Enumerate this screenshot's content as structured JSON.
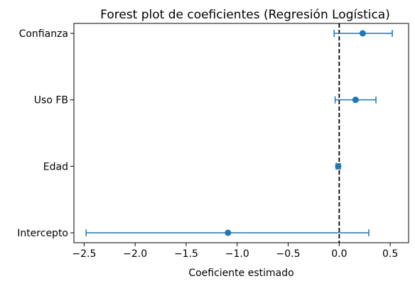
{
  "chart_data": {
    "type": "scatter",
    "title": "Forest plot de coeficientes (Regresión Logística)",
    "xlabel": "Coeficiente estimado",
    "ylabel": "",
    "xlim": [
      -2.6,
      0.68
    ],
    "xticks": [
      -2.5,
      -2.0,
      -1.5,
      -1.0,
      -0.5,
      0.0,
      0.5
    ],
    "xtick_labels": [
      "−2.5",
      "−2.0",
      "−1.5",
      "−1.0",
      "−0.5",
      "0.0",
      "0.5"
    ],
    "reference_line_x": 0,
    "grid": false,
    "categories": [
      "Confianza",
      "Uso FB",
      "Edad",
      "Intercepto"
    ],
    "estimates": [
      0.23,
      0.16,
      -0.01,
      -1.09
    ],
    "ci_low": [
      -0.05,
      -0.04,
      -0.03,
      -2.48
    ],
    "ci_high": [
      0.52,
      0.36,
      0.01,
      0.29
    ],
    "color": "#1f77b4",
    "ref_line_color": "#000000"
  }
}
